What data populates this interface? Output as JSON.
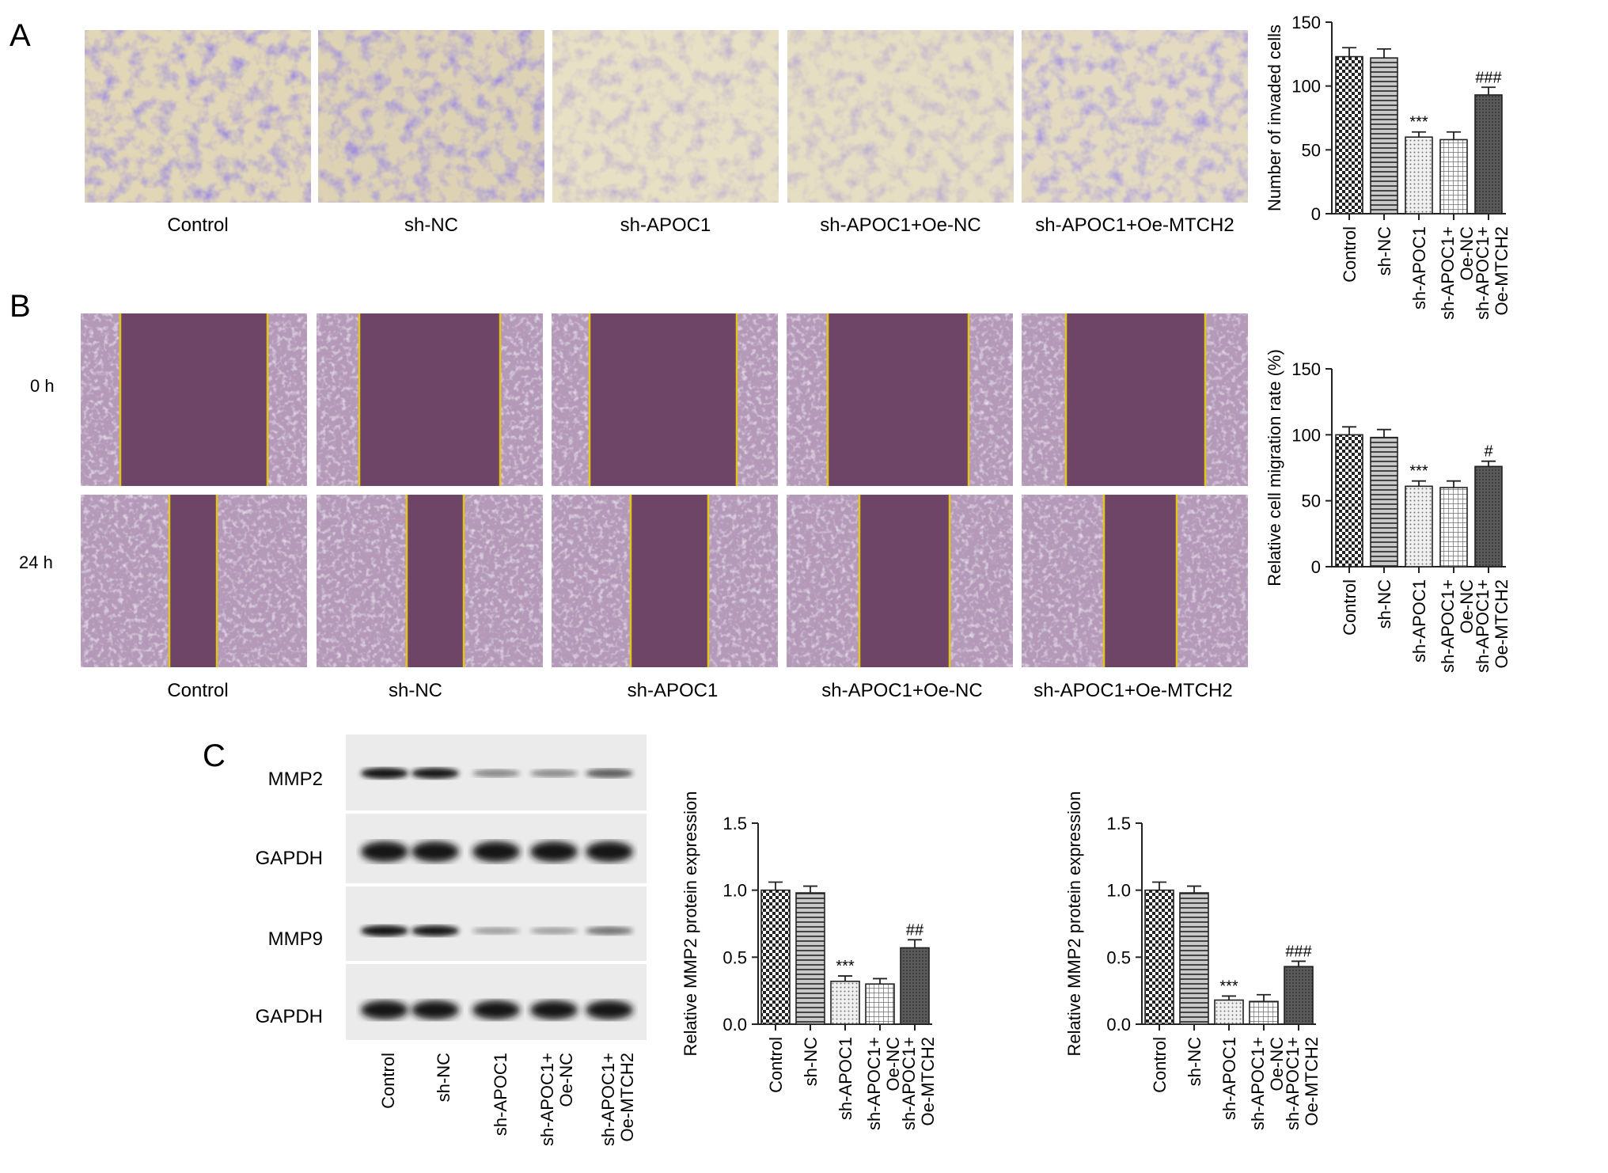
{
  "panels": {
    "A": {
      "letter": "A",
      "image_captions": [
        "Control",
        "sh-NC",
        "sh-APOC1",
        "sh-APOC1+Oe-NC",
        "sh-APOC1+Oe-MTCH2"
      ]
    },
    "B": {
      "letter": "B",
      "row_labels": [
        "0 h",
        "24 h"
      ],
      "image_captions": [
        "Control",
        "sh-NC",
        "sh-APOC1",
        "sh-APOC1+Oe-NC",
        "sh-APOC1+Oe-MTCH2"
      ]
    },
    "C": {
      "letter": "C",
      "blot_rows": [
        "MMP2",
        "GAPDH",
        "MMP9",
        "GAPDH"
      ],
      "blot_lanes": [
        "Control",
        "sh-NC",
        "sh-APOC1",
        "sh-APOC1+\nOe-NC",
        "sh-APOC1+\nOe-MTCH2"
      ],
      "blot_intensity": {
        "MMP2": [
          1.0,
          0.98,
          0.32,
          0.3,
          0.57
        ],
        "GAPDH": [
          1.0,
          1.0,
          1.0,
          1.0,
          1.0
        ],
        "MMP9": [
          1.0,
          0.98,
          0.18,
          0.17,
          0.43
        ]
      }
    }
  },
  "chart_data": [
    {
      "id": "chartA",
      "type": "bar",
      "categories": [
        "Control",
        "sh-NC",
        "sh-APOC1",
        "sh-APOC1+\nOe-NC",
        "sh-APOC1+\nOe-MTCH2"
      ],
      "values": [
        123,
        122,
        60,
        58,
        93
      ],
      "errors": [
        7,
        7,
        4,
        6,
        6
      ],
      "annotations": [
        "",
        "",
        "***",
        "",
        "###"
      ],
      "ylabel": "Number of invaded cells",
      "ylim": [
        0,
        150
      ],
      "yticks": [
        0,
        50,
        100,
        150
      ],
      "patterns": [
        "checker",
        "hstripe",
        "dots",
        "grid",
        "dark"
      ]
    },
    {
      "id": "chartB",
      "type": "bar",
      "categories": [
        "Control",
        "sh-NC",
        "sh-APOC1",
        "sh-APOC1+\nOe-NC",
        "sh-APOC1+\nOe-MTCH2"
      ],
      "values": [
        100,
        98,
        61,
        60,
        76
      ],
      "errors": [
        6,
        6,
        4,
        5,
        4
      ],
      "annotations": [
        "",
        "",
        "***",
        "",
        "#"
      ],
      "ylabel": "Relative cell migration rate (%)",
      "ylim": [
        0,
        150
      ],
      "yticks": [
        0,
        50,
        100,
        150
      ],
      "patterns": [
        "checker",
        "hstripe",
        "dots",
        "grid",
        "dark"
      ]
    },
    {
      "id": "chartC1",
      "type": "bar",
      "categories": [
        "Control",
        "sh-NC",
        "sh-APOC1",
        "sh-APOC1+\nOe-NC",
        "sh-APOC1+\nOe-MTCH2"
      ],
      "values": [
        1.0,
        0.98,
        0.32,
        0.3,
        0.57
      ],
      "errors": [
        0.06,
        0.05,
        0.04,
        0.04,
        0.06
      ],
      "annotations": [
        "",
        "",
        "***",
        "",
        "##"
      ],
      "ylabel": "Relative MMP2 protein expression",
      "ylim": [
        0,
        1.5
      ],
      "yticks": [
        0.0,
        0.5,
        1.0,
        1.5
      ],
      "patterns": [
        "checker",
        "hstripe",
        "dots",
        "grid",
        "dark"
      ]
    },
    {
      "id": "chartC2",
      "type": "bar",
      "categories": [
        "Control",
        "sh-NC",
        "sh-APOC1",
        "sh-APOC1+\nOe-NC",
        "sh-APOC1+\nOe-MTCH2"
      ],
      "values": [
        1.0,
        0.98,
        0.18,
        0.17,
        0.43
      ],
      "errors": [
        0.06,
        0.05,
        0.03,
        0.05,
        0.04
      ],
      "annotations": [
        "",
        "",
        "***",
        "",
        "###"
      ],
      "ylabel": "Relative MMP2 protein expression",
      "ylim": [
        0,
        1.5
      ],
      "yticks": [
        0.0,
        0.5,
        1.0,
        1.5
      ],
      "patterns": [
        "checker",
        "hstripe",
        "dots",
        "grid",
        "dark"
      ]
    }
  ]
}
